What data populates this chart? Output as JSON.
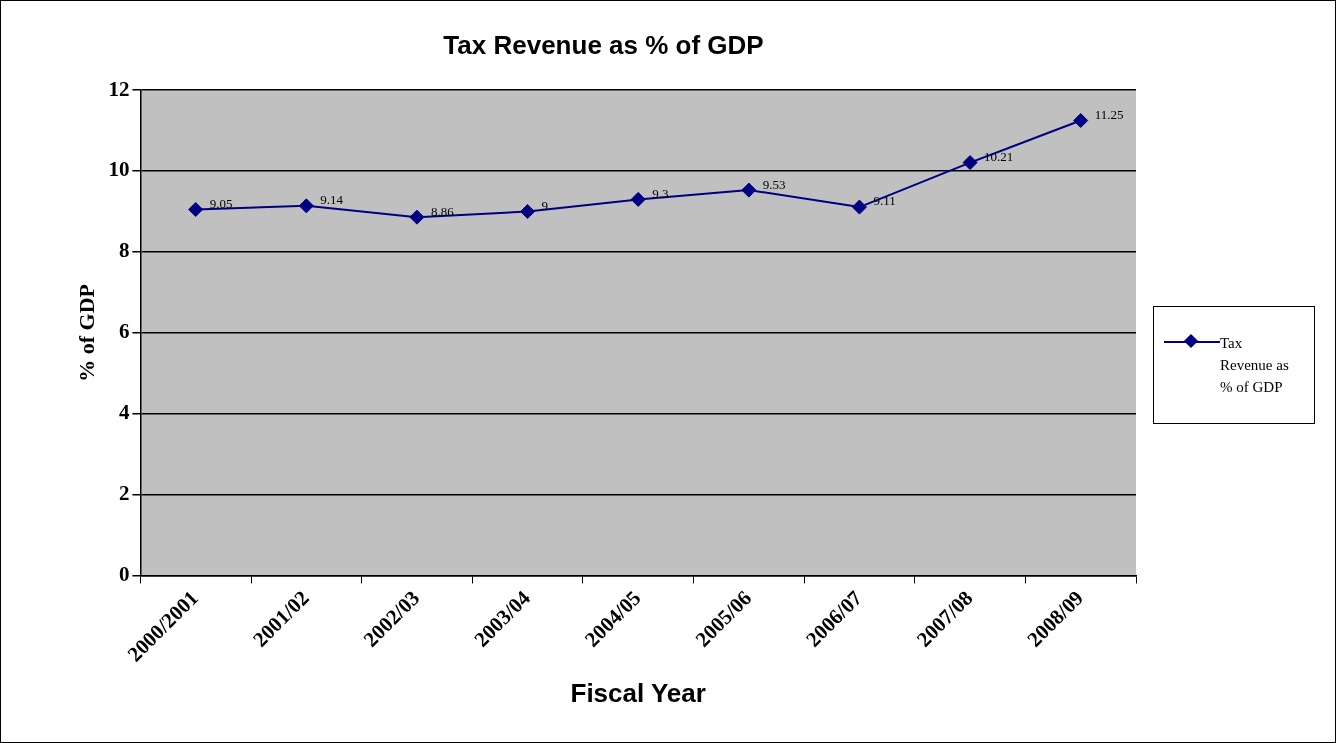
{
  "chart_data": {
    "type": "line",
    "title": "Tax Revenue as % of GDP",
    "xlabel": "Fiscal Year",
    "ylabel": "% of GDP",
    "categories": [
      "2000/2001",
      "2001/02",
      "2002/03",
      "2003/04",
      "2004/05",
      "2005/06",
      "2006/07",
      "2007/08",
      "2008/09"
    ],
    "series": [
      {
        "name": "Tax Revenue as % of GDP",
        "color": "#000080",
        "values": [
          9.05,
          9.14,
          8.86,
          9,
          9.3,
          9.53,
          9.11,
          10.21,
          11.25
        ]
      }
    ],
    "ylim": [
      0,
      12
    ],
    "yticks": [
      0,
      2,
      4,
      6,
      8,
      10,
      12
    ],
    "grid": "y",
    "legend": "right",
    "marker": "diamond",
    "line_style": "solid",
    "data_labels": true
  }
}
